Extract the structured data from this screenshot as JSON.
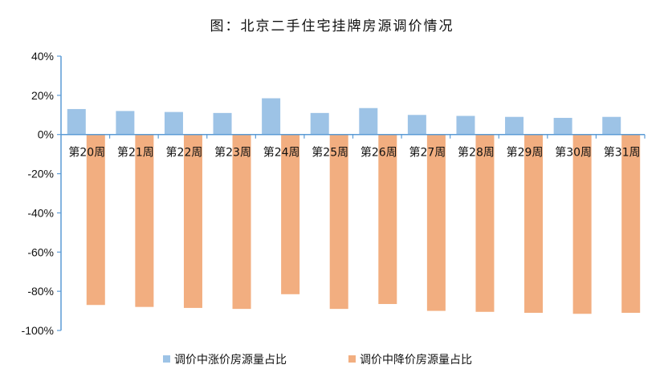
{
  "chart_data": {
    "type": "bar",
    "title": "图：北京二手住宅挂牌房源调价情况",
    "xlabel": "",
    "ylabel": "",
    "categories": [
      "第20周",
      "第21周",
      "第22周",
      "第23周",
      "第24周",
      "第25周",
      "第26周",
      "第27周",
      "第28周",
      "第29周",
      "第30周",
      "第31周"
    ],
    "ylim": [
      -1.0,
      0.4
    ],
    "yticks": [
      0.4,
      0.2,
      0.0,
      -0.2,
      -0.4,
      -0.6,
      -0.8,
      -1.0
    ],
    "ytick_labels": [
      "40%",
      "20%",
      "0%",
      "-20%",
      "-40%",
      "-60%",
      "-80%",
      "-100%"
    ],
    "grid": false,
    "legend_position": "bottom",
    "series": [
      {
        "name": "调价中涨价房源量占比",
        "color": "#9DC3E6",
        "values": [
          0.13,
          0.12,
          0.115,
          0.11,
          0.185,
          0.11,
          0.135,
          0.1,
          0.095,
          0.09,
          0.085,
          0.09
        ]
      },
      {
        "name": "调价中降价房源量占比",
        "color": "#F4B183",
        "values": [
          -0.87,
          -0.88,
          -0.885,
          -0.89,
          -0.815,
          -0.89,
          -0.865,
          -0.9,
          -0.905,
          -0.91,
          -0.915,
          -0.91
        ]
      }
    ]
  }
}
